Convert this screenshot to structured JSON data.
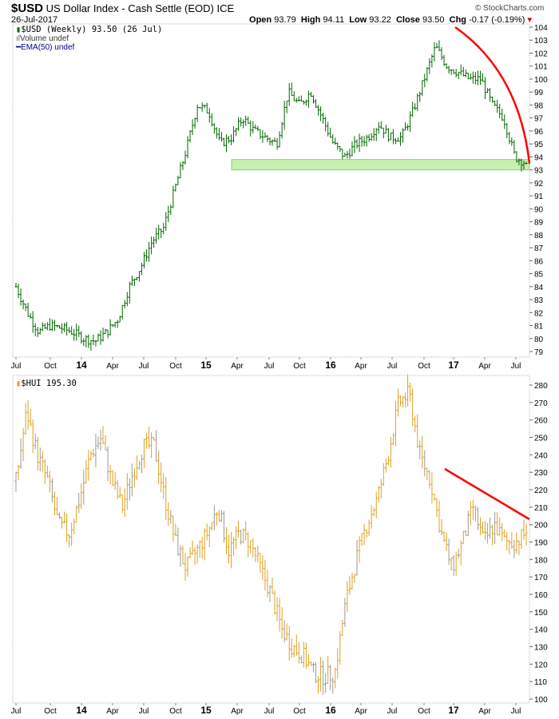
{
  "header": {
    "symbol": "$USD",
    "name": "US Dollar Index - Cash Settle (EOD)",
    "exchange": "ICE",
    "date": "26-Jul-2017",
    "copyright": "© StockCharts.com",
    "open_label": "Open",
    "open": "93.79",
    "high_label": "High",
    "high": "94.11",
    "low_label": "Low",
    "low": "93.22",
    "close_label": "Close",
    "close": "93.50",
    "chg_label": "Chg",
    "chg": "-0.17 (-0.19%)"
  },
  "legend": {
    "main": "$USD (Weekly) 93.50 (26 Jul)",
    "volume": "Volume undef",
    "ema": "EMA(50) undef",
    "hui": "$HUI 195.30"
  },
  "colors": {
    "usd": "#006600",
    "hui": "#e0a020",
    "hui_alt": "#999999",
    "annotation": "#ff0000",
    "zone": "#c8eeb0"
  },
  "chart_data": [
    {
      "type": "ohlc",
      "title": "$USD (Weekly)",
      "ylim": [
        79,
        104
      ],
      "yticks": [
        79,
        80,
        81,
        82,
        83,
        84,
        85,
        86,
        87,
        88,
        89,
        90,
        91,
        92,
        93,
        94,
        95,
        96,
        97,
        98,
        99,
        100,
        101,
        102,
        103,
        104
      ],
      "xticks": [
        "Jul",
        "Oct",
        "14",
        "Apr",
        "Jul",
        "Oct",
        "15",
        "Apr",
        "Jul",
        "Oct",
        "16",
        "Apr",
        "Jul",
        "Oct",
        "17",
        "Apr",
        "Jul"
      ],
      "anchors_approx_close": [
        84,
        82,
        80.5,
        81,
        80.8,
        80.5,
        80,
        79.8,
        80.5,
        81.5,
        84,
        85.5,
        87.5,
        88.5,
        91.5,
        94.5,
        98,
        97.5,
        95,
        95.5,
        97,
        96,
        95.5,
        95,
        99,
        98,
        99,
        97,
        95,
        94,
        95,
        95.5,
        96.5,
        95.5,
        95.5,
        97.5,
        100,
        102.5,
        101,
        100.5,
        100,
        100,
        98,
        97,
        94,
        93.5
      ],
      "annotations": {
        "support_zone": [
          93,
          93.8
        ],
        "curve": "red arc from Jan-17 high down to Jul-17"
      }
    },
    {
      "type": "ohlc",
      "title": "$HUI",
      "ylim": [
        100,
        280
      ],
      "yticks": [
        100,
        110,
        120,
        130,
        140,
        150,
        160,
        170,
        180,
        190,
        200,
        210,
        220,
        230,
        240,
        250,
        260,
        270,
        280
      ],
      "xticks": [
        "Jul",
        "Oct",
        "14",
        "Apr",
        "Jul",
        "Oct",
        "15",
        "Apr",
        "Jul",
        "Oct",
        "16",
        "Apr",
        "Jul",
        "Oct",
        "17",
        "Apr",
        "Jul"
      ],
      "anchors_approx_close": [
        225,
        265,
        240,
        225,
        200,
        195,
        215,
        240,
        250,
        225,
        210,
        230,
        245,
        245,
        215,
        190,
        175,
        185,
        195,
        210,
        185,
        195,
        190,
        175,
        160,
        140,
        130,
        125,
        115,
        113,
        115,
        155,
        180,
        200,
        215,
        240,
        270,
        275,
        240,
        225,
        195,
        175,
        190,
        210,
        190,
        200,
        190,
        190,
        195.3
      ],
      "annotations": {
        "trendline": [
          [
            "Nov-16",
            226
          ],
          [
            "Jul-17",
            201
          ]
        ]
      }
    }
  ]
}
